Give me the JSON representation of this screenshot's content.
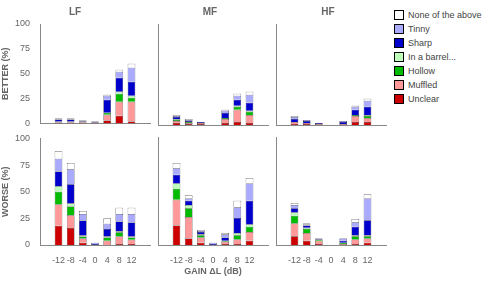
{
  "chart_data": [
    {
      "type": "bar",
      "title": "LF",
      "stacked": true,
      "grid": false,
      "tick_labels": "y",
      "ylabel": "BETTER (%)",
      "x": [
        -12,
        -8,
        -4,
        0,
        4,
        8,
        12
      ],
      "xlim": [
        -15.5,
        15.5
      ],
      "xticks": [
        -12,
        -8,
        -4,
        0,
        4,
        8,
        12
      ],
      "ylim": [
        0,
        100
      ],
      "yticks": [
        0,
        25,
        50,
        75,
        100
      ],
      "series": [
        {
          "name": "Unclear",
          "color": "#CC0000",
          "values": [
            1,
            1,
            1,
            1,
            3,
            8,
            2
          ]
        },
        {
          "name": "Muffled",
          "color": "#FF9999",
          "values": [
            1,
            1,
            1,
            0,
            6,
            14,
            20
          ]
        },
        {
          "name": "Hollow",
          "color": "#00BB00",
          "values": [
            0,
            0,
            0,
            0,
            2,
            8,
            4
          ]
        },
        {
          "name": "In a barrel...",
          "color": "#BBFFBB",
          "values": [
            0,
            0,
            0,
            0,
            0,
            2,
            2
          ]
        },
        {
          "name": "Sharp",
          "color": "#0000CC",
          "values": [
            2,
            2,
            1,
            1,
            13,
            14,
            14
          ]
        },
        {
          "name": "Tinny",
          "color": "#AAAAFF",
          "values": [
            1,
            1,
            0,
            0,
            4,
            6,
            14
          ]
        },
        {
          "name": "None of the above",
          "color": "#FFFFFF",
          "values": [
            0,
            0,
            0,
            0,
            1,
            2,
            4
          ]
        }
      ]
    },
    {
      "type": "bar",
      "title": "MF",
      "stacked": true,
      "grid": false,
      "tick_labels": false,
      "x": [
        -12,
        -8,
        -4,
        0,
        4,
        8,
        12
      ],
      "xlim": [
        -15.5,
        15.5
      ],
      "xticks": [
        -12,
        -8,
        -4,
        0,
        4,
        8,
        12
      ],
      "ylim": [
        0,
        100
      ],
      "yticks": [
        0,
        25,
        50,
        75,
        100
      ],
      "series": [
        {
          "name": "Unclear",
          "color": "#CC0000",
          "values": [
            2,
            1,
            1,
            0,
            2,
            3,
            2
          ]
        },
        {
          "name": "Muffled",
          "color": "#FF9999",
          "values": [
            2,
            1,
            1,
            0,
            4,
            12,
            8
          ]
        },
        {
          "name": "Hollow",
          "color": "#00BB00",
          "values": [
            1,
            1,
            0,
            0,
            1,
            3,
            3
          ]
        },
        {
          "name": "In a barrel...",
          "color": "#BBFFBB",
          "values": [
            1,
            0,
            0,
            0,
            0,
            1,
            1
          ]
        },
        {
          "name": "Sharp",
          "color": "#0000CC",
          "values": [
            2,
            1,
            1,
            0,
            5,
            6,
            8
          ]
        },
        {
          "name": "Tinny",
          "color": "#AAAAFF",
          "values": [
            1,
            1,
            0,
            0,
            2,
            4,
            8
          ]
        },
        {
          "name": "None of the above",
          "color": "#FFFFFF",
          "values": [
            1,
            1,
            0,
            0,
            1,
            2,
            3
          ]
        }
      ]
    },
    {
      "type": "bar",
      "title": "HF",
      "stacked": true,
      "grid": false,
      "tick_labels": false,
      "legend": "right",
      "x": [
        -12,
        -8,
        -4,
        0,
        4,
        8,
        12
      ],
      "xlim": [
        -15.5,
        15.5
      ],
      "xticks": [
        -12,
        -8,
        -4,
        0,
        4,
        8,
        12
      ],
      "ylim": [
        0,
        100
      ],
      "yticks": [
        0,
        25,
        50,
        75,
        100
      ],
      "series": [
        {
          "name": "Unclear",
          "color": "#CC0000",
          "values": [
            1,
            1,
            0,
            0,
            0,
            3,
            3
          ]
        },
        {
          "name": "Muffled",
          "color": "#FF9999",
          "values": [
            2,
            1,
            1,
            0,
            1,
            6,
            4
          ]
        },
        {
          "name": "Hollow",
          "color": "#00BB00",
          "values": [
            0,
            0,
            0,
            0,
            0,
            1,
            2
          ]
        },
        {
          "name": "In a barrel...",
          "color": "#BBFFBB",
          "values": [
            0,
            0,
            0,
            0,
            0,
            0,
            1
          ]
        },
        {
          "name": "Sharp",
          "color": "#0000CC",
          "values": [
            3,
            2,
            1,
            0,
            2,
            5,
            8
          ]
        },
        {
          "name": "Tinny",
          "color": "#AAAAFF",
          "values": [
            2,
            1,
            0,
            0,
            1,
            3,
            6
          ]
        },
        {
          "name": "None of the above",
          "color": "#FFFFFF",
          "values": [
            1,
            0,
            0,
            0,
            0,
            1,
            2
          ]
        }
      ]
    },
    {
      "type": "bar",
      "stacked": true,
      "grid": false,
      "tick_labels": true,
      "ylabel": "WORSE (%)",
      "x": [
        -12,
        -8,
        -4,
        0,
        4,
        8,
        12
      ],
      "xlim": [
        -15.5,
        15.5
      ],
      "xticks": [
        -12,
        -8,
        -4,
        0,
        4,
        8,
        12
      ],
      "ylim": [
        0,
        100
      ],
      "yticks": [
        0,
        25,
        50,
        75,
        100
      ],
      "series": [
        {
          "name": "Unclear",
          "color": "#CC0000",
          "values": [
            18,
            16,
            2,
            0,
            0,
            1,
            1
          ]
        },
        {
          "name": "Muffled",
          "color": "#FF9999",
          "values": [
            20,
            12,
            4,
            0,
            4,
            7,
            4
          ]
        },
        {
          "name": "Hollow",
          "color": "#00BB00",
          "values": [
            12,
            8,
            2,
            0,
            3,
            4,
            2
          ]
        },
        {
          "name": "In a barrel...",
          "color": "#BBFFBB",
          "values": [
            5,
            3,
            1,
            0,
            1,
            1,
            1
          ]
        },
        {
          "name": "Sharp",
          "color": "#0000CC",
          "values": [
            14,
            18,
            14,
            1,
            7,
            9,
            13
          ]
        },
        {
          "name": "Tinny",
          "color": "#AAAAFF",
          "values": [
            12,
            14,
            6,
            1,
            5,
            7,
            8
          ]
        },
        {
          "name": "None of the above",
          "color": "#FFFFFF",
          "values": [
            7,
            6,
            3,
            0,
            5,
            6,
            6
          ]
        }
      ]
    },
    {
      "type": "bar",
      "stacked": true,
      "grid": false,
      "tick_labels": "x",
      "xlabel": "GAIN ΔL (dB)",
      "x": [
        -12,
        -8,
        -4,
        0,
        4,
        8,
        12
      ],
      "xlim": [
        -15.5,
        15.5
      ],
      "xticks": [
        -12,
        -8,
        -4,
        0,
        4,
        8,
        12
      ],
      "ylim": [
        0,
        100
      ],
      "yticks": [
        0,
        25,
        50,
        75,
        100
      ],
      "series": [
        {
          "name": "Unclear",
          "color": "#CC0000",
          "values": [
            18,
            6,
            2,
            0,
            1,
            1,
            4
          ]
        },
        {
          "name": "Muffled",
          "color": "#FF9999",
          "values": [
            24,
            20,
            5,
            0,
            2,
            4,
            8
          ]
        },
        {
          "name": "Hollow",
          "color": "#00BB00",
          "values": [
            10,
            8,
            2,
            0,
            1,
            4,
            5
          ]
        },
        {
          "name": "In a barrel...",
          "color": "#BBFFBB",
          "values": [
            5,
            3,
            1,
            0,
            0,
            2,
            2
          ]
        },
        {
          "name": "Sharp",
          "color": "#0000CC",
          "values": [
            8,
            4,
            2,
            1,
            3,
            14,
            22
          ]
        },
        {
          "name": "Tinny",
          "color": "#AAAAFF",
          "values": [
            6,
            2,
            1,
            1,
            3,
            10,
            16
          ]
        },
        {
          "name": "None of the above",
          "color": "#FFFFFF",
          "values": [
            5,
            3,
            1,
            0,
            1,
            6,
            5
          ]
        }
      ]
    },
    {
      "type": "bar",
      "stacked": true,
      "grid": false,
      "tick_labels": "x",
      "x": [
        -12,
        -8,
        -4,
        0,
        4,
        8,
        12
      ],
      "xlim": [
        -15.5,
        15.5
      ],
      "xticks": [
        -12,
        -8,
        -4,
        0,
        4,
        8,
        12
      ],
      "ylim": [
        0,
        100
      ],
      "yticks": [
        0,
        25,
        50,
        75,
        100
      ],
      "series": [
        {
          "name": "Unclear",
          "color": "#CC0000",
          "values": [
            8,
            4,
            1,
            0,
            0,
            1,
            2
          ]
        },
        {
          "name": "Muffled",
          "color": "#FF9999",
          "values": [
            12,
            7,
            3,
            0,
            1,
            4,
            4
          ]
        },
        {
          "name": "Hollow",
          "color": "#00BB00",
          "values": [
            7,
            4,
            1,
            0,
            1,
            3,
            2
          ]
        },
        {
          "name": "In a barrel...",
          "color": "#BBFFBB",
          "values": [
            3,
            1,
            0,
            0,
            0,
            1,
            1
          ]
        },
        {
          "name": "Sharp",
          "color": "#0000CC",
          "values": [
            4,
            2,
            1,
            0,
            2,
            8,
            14
          ]
        },
        {
          "name": "Tinny",
          "color": "#AAAAFF",
          "values": [
            3,
            1,
            0,
            0,
            2,
            4,
            20
          ]
        },
        {
          "name": "None of the above",
          "color": "#FFFFFF",
          "values": [
            2,
            1,
            0,
            0,
            0,
            3,
            4
          ]
        }
      ]
    }
  ]
}
